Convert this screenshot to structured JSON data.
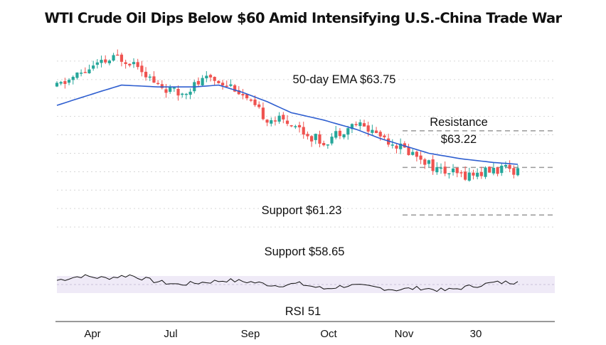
{
  "title": "WTI Crude Oil Dips Below $60 Amid Intensifying U.S.-China Trade War",
  "colors": {
    "bullish": "#26a69a",
    "bearish": "#ef5350",
    "ema": "#2f5fd0",
    "level_line": "#9a9a9a",
    "rsi_line": "#111111",
    "rsi_band": "#efeaf7",
    "grid": "#d6d6d6"
  },
  "annotations": {
    "ema_label": "50-day EMA $63.75",
    "resistance_label_1": "Resistance",
    "resistance_label_2": "$63.22",
    "support_1_label": "Support $61.23",
    "support_2_label": "Support $58.65",
    "rsi_label": "RSI 51"
  },
  "chart_data": {
    "type": "candlestick",
    "title": "WTI Crude Oil Dips Below $60 Amid Intensifying U.S.-China Trade War",
    "x_tick_labels": [
      "Apr",
      "Jul",
      "Sep",
      "Oct",
      "Nov",
      "30"
    ],
    "ylim": [
      57,
      68
    ],
    "grid": true,
    "levels": [
      {
        "name": "Resistance",
        "value": 63.22
      },
      {
        "name": "Support",
        "value": 61.23
      },
      {
        "name": "Support",
        "value": 58.65
      }
    ],
    "ema": {
      "period": 50,
      "last_value": 63.75
    },
    "rsi": {
      "last_value": 51,
      "range": [
        0,
        100
      ],
      "band": [
        30,
        70
      ]
    }
  }
}
